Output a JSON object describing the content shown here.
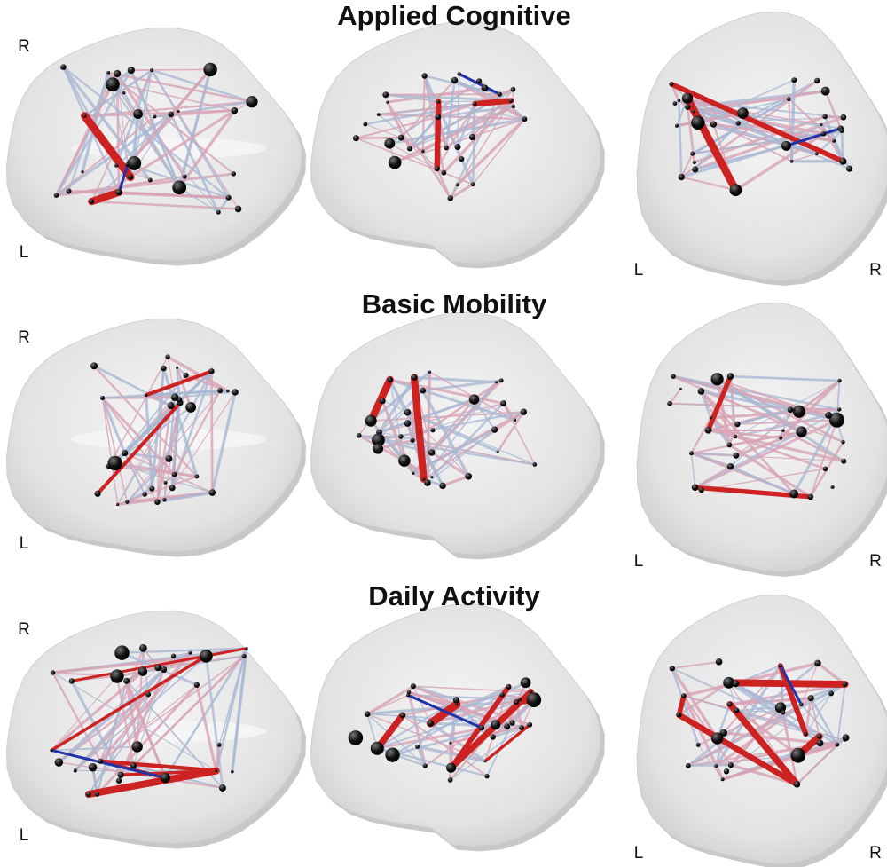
{
  "rows": [
    {
      "title": "Applied Cognitive",
      "orientation_labels": [
        "R",
        "L",
        "L",
        "R"
      ]
    },
    {
      "title": "Basic Mobility",
      "orientation_labels": [
        "R",
        "L",
        "L",
        "R"
      ]
    },
    {
      "title": "Daily Activity",
      "orientation_labels": [
        "R",
        "L",
        "L",
        "R"
      ]
    }
  ]
}
